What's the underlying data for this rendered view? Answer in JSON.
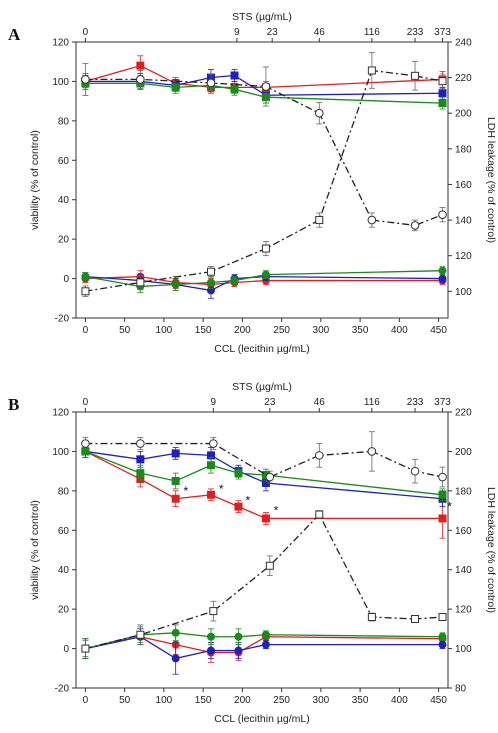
{
  "chart_data": [
    {
      "type": "line",
      "panel": "A",
      "x_label": "CCL (lecithin µg/mL)",
      "x_ticks": [
        0,
        50,
        100,
        150,
        200,
        250,
        300,
        350,
        400,
        450
      ],
      "xlim": [
        -12,
        462
      ],
      "top_axis_label": "STS (µg/mL)",
      "top_ticks": [
        {
          "label": "0",
          "at": 0
        },
        {
          "label": "9",
          "at": 193
        },
        {
          "label": "23",
          "at": 238
        },
        {
          "label": "46",
          "at": 298
        },
        {
          "label": "116",
          "at": 365
        },
        {
          "label": "233",
          "at": 420
        },
        {
          "label": "373",
          "at": 455
        }
      ],
      "y_left_label": "viability (% of control)",
      "y_left_ticks": [
        -20,
        0,
        20,
        40,
        60,
        80,
        100,
        120
      ],
      "ylim_left": [
        -20,
        120
      ],
      "y_right_label": "LDH leakage (% of control)",
      "y_right_ticks": [
        100,
        120,
        140,
        160,
        180,
        200,
        220,
        240
      ],
      "ylim_right": [
        85,
        240
      ],
      "x": [
        0,
        70,
        115,
        160,
        190,
        230,
        455
      ],
      "series": [
        {
          "color": "#e02020",
          "marker": "square",
          "axis": "left",
          "values": [
            100,
            108,
            99,
            97,
            97,
            97,
            101
          ],
          "err": [
            4,
            5,
            3,
            3,
            3,
            3,
            4
          ]
        },
        {
          "color": "#2020c0",
          "marker": "square",
          "axis": "left",
          "values": [
            100,
            100,
            98,
            102,
            103,
            93,
            94
          ],
          "err": [
            3,
            4,
            3,
            4,
            3,
            4,
            3
          ]
        },
        {
          "color": "#1a8a1a",
          "marker": "square",
          "axis": "left",
          "values": [
            99,
            99,
            97,
            98,
            96,
            92,
            89
          ],
          "err": [
            3,
            3,
            3,
            3,
            3,
            3,
            3
          ]
        },
        {
          "color": "#e02020",
          "marker": "circle",
          "axis": "left",
          "values": [
            0,
            1,
            -2,
            -3,
            -2,
            -1,
            -1
          ],
          "err": [
            2,
            3,
            3,
            3,
            2,
            2,
            2
          ]
        },
        {
          "color": "#2020c0",
          "marker": "circle",
          "axis": "left",
          "values": [
            1,
            -1,
            -3,
            -6,
            0,
            1,
            0
          ],
          "err": [
            2,
            3,
            3,
            4,
            2,
            2,
            2
          ]
        },
        {
          "color": "#1a8a1a",
          "marker": "circle",
          "axis": "left",
          "values": [
            1,
            -4,
            -3,
            -2,
            -1,
            2,
            4
          ],
          "err": [
            2,
            3,
            3,
            3,
            2,
            2,
            2
          ]
        },
        {
          "color": "#222222",
          "marker": "open-square",
          "dash": "dashdot",
          "axis": "right",
          "x": [
            0,
            70,
            160,
            230,
            298,
            365,
            420,
            455
          ],
          "values": [
            100,
            105,
            111,
            124,
            140,
            224,
            221,
            218
          ],
          "err": [
            3,
            4,
            3,
            4,
            4,
            10,
            8,
            4
          ]
        },
        {
          "color": "#222222",
          "marker": "open-circle",
          "dash": "dashdot",
          "axis": "right",
          "x": [
            0,
            70,
            160,
            230,
            298,
            365,
            420,
            455
          ],
          "values": [
            219,
            219,
            217,
            215,
            200,
            140,
            137,
            143
          ],
          "err": [
            9,
            5,
            5,
            11,
            6,
            4,
            3,
            4
          ]
        }
      ],
      "annotations": []
    },
    {
      "type": "line",
      "panel": "B",
      "x_label": "CCL (lecithin µg/mL)",
      "x_ticks": [
        0,
        50,
        100,
        150,
        200,
        250,
        300,
        350,
        400,
        450
      ],
      "xlim": [
        -12,
        462
      ],
      "top_axis_label": "STS (µg/mL)",
      "top_ticks": [
        {
          "label": "0",
          "at": 0
        },
        {
          "label": "9",
          "at": 163
        },
        {
          "label": "23",
          "at": 235
        },
        {
          "label": "46",
          "at": 298
        },
        {
          "label": "116",
          "at": 365
        },
        {
          "label": "233",
          "at": 420
        },
        {
          "label": "373",
          "at": 455
        }
      ],
      "y_left_label": "viability (% of control)",
      "y_left_ticks": [
        -20,
        0,
        20,
        40,
        60,
        80,
        100,
        120
      ],
      "ylim_left": [
        -20,
        120
      ],
      "y_right_label": "LDH leakage (% of control)",
      "y_right_ticks": [
        80,
        100,
        120,
        140,
        160,
        180,
        200,
        220
      ],
      "ylim_right": [
        80,
        220
      ],
      "x": [
        0,
        70,
        115,
        160,
        195,
        230,
        455
      ],
      "series": [
        {
          "color": "#e02020",
          "marker": "square",
          "axis": "left",
          "values": [
            100,
            86,
            76,
            78,
            72,
            66,
            66
          ],
          "err": [
            3,
            4,
            4,
            3,
            3,
            3,
            10
          ]
        },
        {
          "color": "#2020c0",
          "marker": "square",
          "axis": "left",
          "values": [
            100,
            96,
            99,
            98,
            90,
            84,
            76
          ],
          "err": [
            3,
            4,
            3,
            4,
            3,
            4,
            4
          ]
        },
        {
          "color": "#1a8a1a",
          "marker": "square",
          "axis": "left",
          "values": [
            100,
            89,
            85,
            93,
            89,
            88,
            78
          ],
          "err": [
            3,
            4,
            4,
            4,
            3,
            3,
            3
          ]
        },
        {
          "color": "#e02020",
          "marker": "circle",
          "axis": "left",
          "values": [
            0,
            6,
            2,
            -2,
            -2,
            6,
            5
          ],
          "err": [
            5,
            4,
            5,
            5,
            4,
            2,
            2
          ]
        },
        {
          "color": "#2020c0",
          "marker": "circle",
          "axis": "left",
          "values": [
            0,
            6,
            -5,
            -1,
            -1,
            2,
            2
          ],
          "err": [
            5,
            4,
            8,
            4,
            4,
            2,
            2
          ]
        },
        {
          "color": "#1a8a1a",
          "marker": "circle",
          "axis": "left",
          "values": [
            0,
            7,
            8,
            6,
            6,
            7,
            6
          ],
          "err": [
            5,
            4,
            4,
            4,
            4,
            2,
            2
          ]
        },
        {
          "color": "#222222",
          "marker": "open-square",
          "dash": "dashdot",
          "axis": "right",
          "x": [
            0,
            70,
            163,
            235,
            298,
            365,
            420,
            455
          ],
          "values": [
            100,
            107,
            119,
            142,
            168,
            116,
            115,
            116
          ],
          "err": [
            4,
            5,
            5,
            5,
            2,
            2,
            1,
            1
          ]
        },
        {
          "color": "#222222",
          "marker": "open-circle",
          "dash": "dashdot",
          "axis": "right",
          "x": [
            0,
            70,
            163,
            235,
            298,
            365,
            420,
            455
          ],
          "values": [
            204,
            204,
            204,
            187,
            198,
            200,
            190,
            187
          ],
          "err": [
            3,
            3,
            3,
            3,
            6,
            10,
            6,
            5
          ]
        }
      ],
      "annotations": [
        {
          "text": "*",
          "x": 128,
          "y": 80
        },
        {
          "text": "*",
          "x": 173,
          "y": 81
        },
        {
          "text": "*",
          "x": 207,
          "y": 75
        },
        {
          "text": "*",
          "x": 243,
          "y": 70
        },
        {
          "text": "*",
          "x": 464,
          "y": 72
        }
      ]
    }
  ]
}
